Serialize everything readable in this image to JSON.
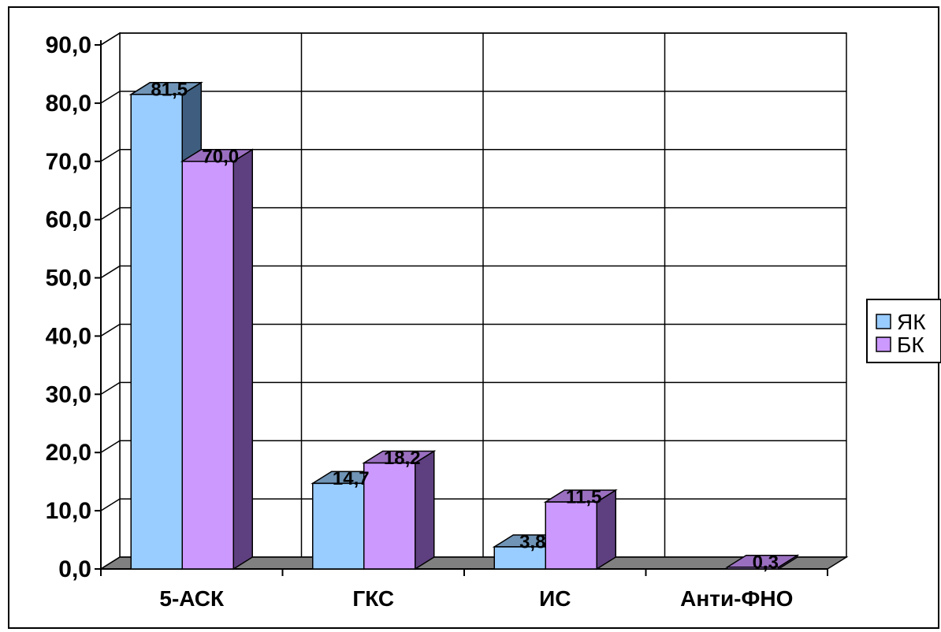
{
  "chart_data": {
    "type": "bar",
    "categories": [
      "5-АСК",
      "ГКС",
      "ИС",
      "Анти-ФНО"
    ],
    "series": [
      {
        "name": "ЯК",
        "values": [
          81.5,
          14.7,
          3.8,
          0
        ],
        "labels": [
          "81,5",
          "14,7",
          "3,8",
          ""
        ]
      },
      {
        "name": "БК",
        "values": [
          70.0,
          18.2,
          11.5,
          0.3
        ],
        "labels": [
          "70,0",
          "18,2",
          "11,5",
          "0,3"
        ]
      }
    ],
    "ylim": [
      0,
      90
    ],
    "yticks": [
      0,
      10,
      20,
      30,
      40,
      50,
      60,
      70,
      80,
      90
    ],
    "ytick_labels": [
      "0,0",
      "10,0",
      "20,0",
      "30,0",
      "40,0",
      "50,0",
      "60,0",
      "70,0",
      "80,0",
      "90,0"
    ],
    "grid": true,
    "legend_position": "right",
    "colors": {
      "ЯК": {
        "front": "#99ccff",
        "side": "#3f5e7f",
        "top": "#6f94b6"
      },
      "БК": {
        "front": "#cc99ff",
        "side": "#5e3f7f",
        "top": "#9a6fc0"
      },
      "floor": "#808080",
      "grid": "#000000"
    }
  }
}
